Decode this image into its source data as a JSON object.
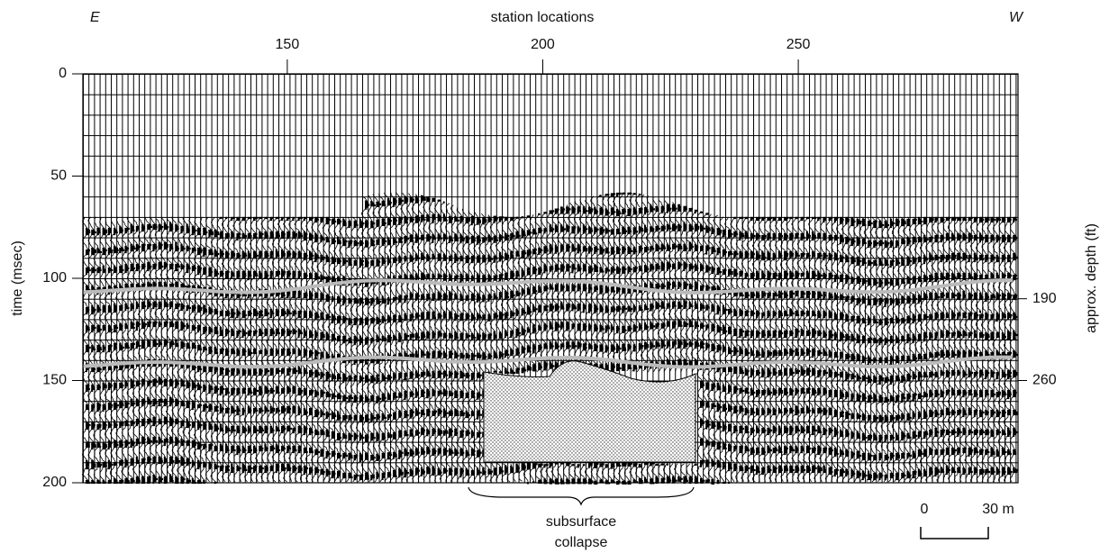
{
  "chart_data": {
    "type": "seismic",
    "title": "station locations",
    "left_label": "E",
    "right_label": "W",
    "y_label": "time (msec)",
    "y2_label": "approx. depth (ft)",
    "xlim": [
      110,
      293
    ],
    "xticks": [
      150,
      200,
      250
    ],
    "ylim": [
      0,
      200
    ],
    "yticks": [
      0,
      50,
      100,
      150,
      200
    ],
    "y2lim": [
      0,
      200
    ],
    "y2ticks": [
      {
        "value": 110,
        "label": "190"
      },
      {
        "value": 150,
        "label": "260"
      }
    ],
    "annotation": [
      "subsurface",
      "collapse"
    ],
    "scale_bar": [
      "0",
      "30 m"
    ]
  }
}
